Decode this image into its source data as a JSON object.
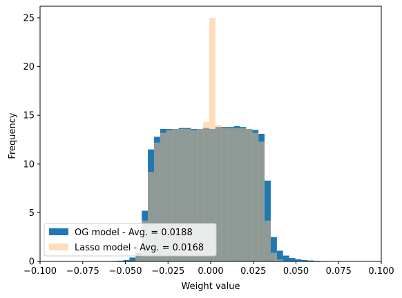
{
  "chart_data": {
    "type": "bar",
    "title": "",
    "xlabel": "Weight value",
    "ylabel": "Frequency",
    "xlim": [
      -0.1,
      0.1
    ],
    "ylim": [
      0,
      26.2
    ],
    "bin_width": 0.0036,
    "x_ticks": [
      -0.1,
      -0.075,
      -0.05,
      -0.025,
      0.0,
      0.025,
      0.05,
      0.075,
      0.1
    ],
    "x_tick_labels": [
      "−0.100",
      "−0.075",
      "−0.050",
      "−0.025",
      "0.000",
      "0.025",
      "0.050",
      "0.075",
      "0.100"
    ],
    "y_ticks": [
      0,
      5,
      10,
      15,
      20,
      25
    ],
    "y_tick_labels": [
      "0",
      "5",
      "10",
      "15",
      "20",
      "25"
    ],
    "legend": {
      "position": "lower-left"
    },
    "series": [
      {
        "name": "OG model - Avg. = 0.0188",
        "color": "#1f77b4",
        "alpha": 1.0,
        "bins": [
          {
            "x0": -0.0584,
            "x1": -0.0548,
            "y": 0.05
          },
          {
            "x0": -0.0548,
            "x1": -0.0512,
            "y": 0.08
          },
          {
            "x0": -0.0512,
            "x1": -0.0476,
            "y": 0.15
          },
          {
            "x0": -0.0476,
            "x1": -0.044,
            "y": 0.4
          },
          {
            "x0": -0.044,
            "x1": -0.0404,
            "y": 0.9
          },
          {
            "x0": -0.0404,
            "x1": -0.0368,
            "y": 5.2
          },
          {
            "x0": -0.0368,
            "x1": -0.0332,
            "y": 11.5
          },
          {
            "x0": -0.0332,
            "x1": -0.0296,
            "y": 12.8
          },
          {
            "x0": -0.0296,
            "x1": -0.026,
            "y": 13.6
          },
          {
            "x0": -0.026,
            "x1": -0.0224,
            "y": 13.6
          },
          {
            "x0": -0.0224,
            "x1": -0.0188,
            "y": 13.6
          },
          {
            "x0": -0.0188,
            "x1": -0.0152,
            "y": 13.7
          },
          {
            "x0": -0.0152,
            "x1": -0.0116,
            "y": 13.7
          },
          {
            "x0": -0.0116,
            "x1": -0.008,
            "y": 13.6
          },
          {
            "x0": -0.008,
            "x1": -0.0044,
            "y": 13.6
          },
          {
            "x0": -0.0044,
            "x1": -0.0008,
            "y": 13.7
          },
          {
            "x0": -0.0008,
            "x1": 0.0028,
            "y": 13.6
          },
          {
            "x0": 0.0028,
            "x1": 0.0064,
            "y": 13.8
          },
          {
            "x0": 0.0064,
            "x1": 0.01,
            "y": 13.8
          },
          {
            "x0": 0.01,
            "x1": 0.0136,
            "y": 13.8
          },
          {
            "x0": 0.0136,
            "x1": 0.0172,
            "y": 13.9
          },
          {
            "x0": 0.0172,
            "x1": 0.0208,
            "y": 13.8
          },
          {
            "x0": 0.0208,
            "x1": 0.0244,
            "y": 13.6
          },
          {
            "x0": 0.0244,
            "x1": 0.028,
            "y": 13.5
          },
          {
            "x0": 0.028,
            "x1": 0.0316,
            "y": 13.1
          },
          {
            "x0": 0.0316,
            "x1": 0.0352,
            "y": 8.3
          },
          {
            "x0": 0.0352,
            "x1": 0.0388,
            "y": 2.5
          },
          {
            "x0": 0.0388,
            "x1": 0.0424,
            "y": 1.1
          },
          {
            "x0": 0.0424,
            "x1": 0.046,
            "y": 0.6
          },
          {
            "x0": 0.046,
            "x1": 0.0496,
            "y": 0.35
          },
          {
            "x0": 0.0496,
            "x1": 0.0532,
            "y": 0.22
          },
          {
            "x0": 0.0532,
            "x1": 0.0568,
            "y": 0.15
          },
          {
            "x0": 0.0568,
            "x1": 0.0604,
            "y": 0.1
          },
          {
            "x0": 0.0604,
            "x1": 0.064,
            "y": 0.06
          },
          {
            "x0": 0.064,
            "x1": 0.0676,
            "y": 0.04
          },
          {
            "x0": 0.0676,
            "x1": 0.0712,
            "y": 0.02
          }
        ]
      },
      {
        "name": "Lasso model - Avg. = 0.0168",
        "color": "#ffbb78",
        "alpha": 0.5,
        "bins": [
          {
            "x0": -0.044,
            "x1": -0.0404,
            "y": 0.5
          },
          {
            "x0": -0.0404,
            "x1": -0.0368,
            "y": 4.2
          },
          {
            "x0": -0.0368,
            "x1": -0.0332,
            "y": 9.2
          },
          {
            "x0": -0.0332,
            "x1": -0.0296,
            "y": 12.2
          },
          {
            "x0": -0.0296,
            "x1": -0.026,
            "y": 13.2
          },
          {
            "x0": -0.026,
            "x1": -0.0224,
            "y": 13.5
          },
          {
            "x0": -0.0224,
            "x1": -0.0188,
            "y": 13.6
          },
          {
            "x0": -0.0188,
            "x1": -0.0152,
            "y": 13.6
          },
          {
            "x0": -0.0152,
            "x1": -0.0116,
            "y": 13.6
          },
          {
            "x0": -0.0116,
            "x1": -0.008,
            "y": 13.5
          },
          {
            "x0": -0.008,
            "x1": -0.0044,
            "y": 13.6
          },
          {
            "x0": -0.0044,
            "x1": -0.0008,
            "y": 14.3
          },
          {
            "x0": -0.0008,
            "x1": 0.0028,
            "y": 25.0
          },
          {
            "x0": 0.0028,
            "x1": 0.0064,
            "y": 14.0
          },
          {
            "x0": 0.0064,
            "x1": 0.01,
            "y": 13.7
          },
          {
            "x0": 0.01,
            "x1": 0.0136,
            "y": 13.7
          },
          {
            "x0": 0.0136,
            "x1": 0.0172,
            "y": 13.7
          },
          {
            "x0": 0.0172,
            "x1": 0.0208,
            "y": 13.7
          },
          {
            "x0": 0.0208,
            "x1": 0.0244,
            "y": 13.6
          },
          {
            "x0": 0.0244,
            "x1": 0.028,
            "y": 13.2
          },
          {
            "x0": 0.028,
            "x1": 0.0316,
            "y": 12.3
          },
          {
            "x0": 0.0316,
            "x1": 0.0352,
            "y": 4.2
          },
          {
            "x0": 0.0352,
            "x1": 0.0388,
            "y": 0.9
          },
          {
            "x0": 0.0388,
            "x1": 0.0424,
            "y": 0.2
          }
        ]
      }
    ]
  }
}
